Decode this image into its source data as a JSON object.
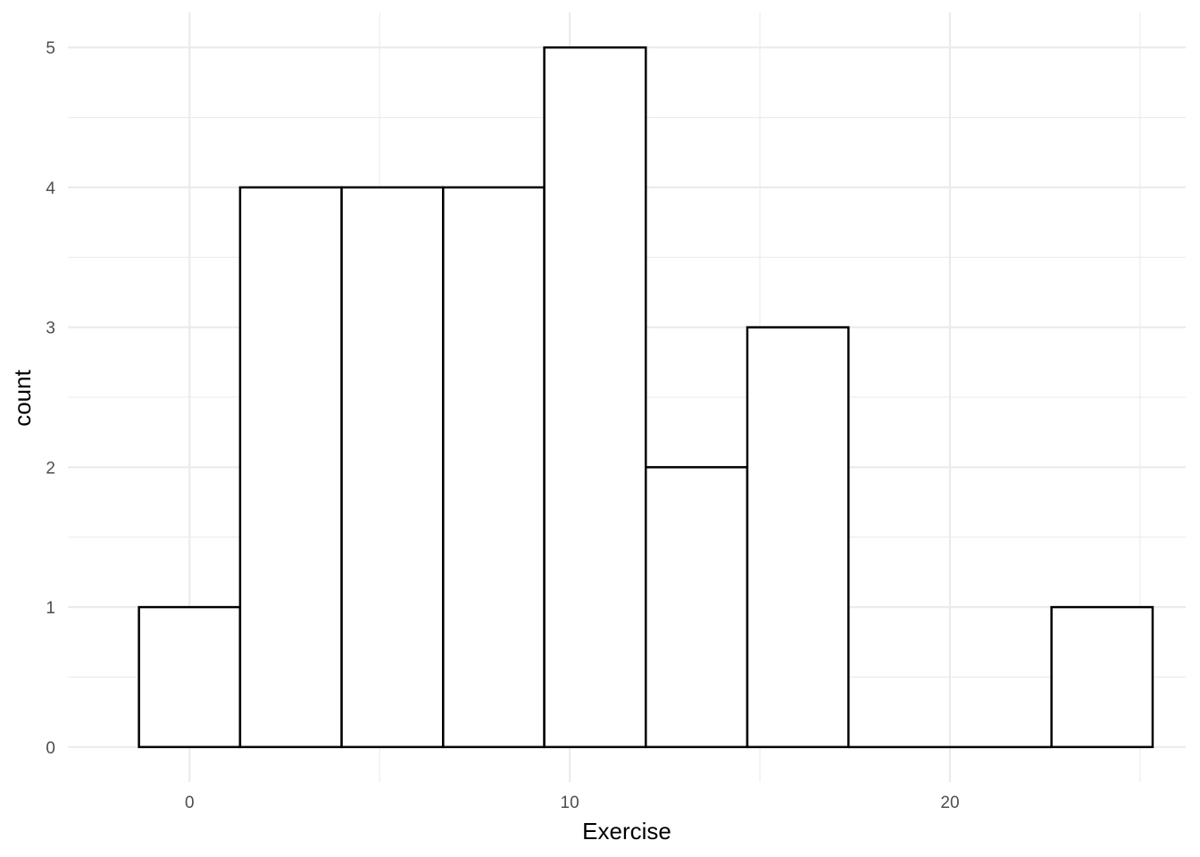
{
  "chart_data": {
    "type": "bar",
    "subtype": "histogram",
    "xlabel": "Exercise",
    "ylabel": "count",
    "xlim": [
      -3.2,
      26.2
    ],
    "ylim": [
      -0.25,
      5.25
    ],
    "x_ticks": [
      0,
      10,
      20
    ],
    "y_ticks": [
      0,
      1,
      2,
      3,
      4,
      5
    ],
    "grid": true,
    "bar_fill": "#ffffff",
    "bar_outline": "#000000",
    "bins": [
      {
        "x0": -1.33,
        "x1": 1.33,
        "count": 1
      },
      {
        "x0": 1.33,
        "x1": 4.0,
        "count": 4
      },
      {
        "x0": 4.0,
        "x1": 6.67,
        "count": 4
      },
      {
        "x0": 6.67,
        "x1": 9.33,
        "count": 4
      },
      {
        "x0": 9.33,
        "x1": 12.0,
        "count": 5
      },
      {
        "x0": 12.0,
        "x1": 14.67,
        "count": 2
      },
      {
        "x0": 14.67,
        "x1": 17.33,
        "count": 3
      },
      {
        "x0": 17.33,
        "x1": 20.0,
        "count": 0
      },
      {
        "x0": 20.0,
        "x1": 22.67,
        "count": 0
      },
      {
        "x0": 22.67,
        "x1": 25.33,
        "count": 1
      }
    ]
  }
}
